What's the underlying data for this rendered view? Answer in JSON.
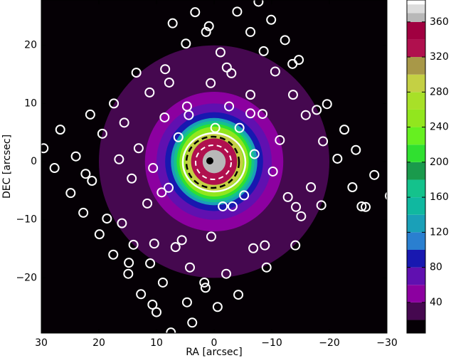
{
  "chart_data": {
    "type": "contour-scatter",
    "x_label": "RA [arcsec]",
    "y_label": "DEC [arcsec]",
    "xlim": [
      30,
      -30
    ],
    "ylim": [
      -29.5,
      27.8
    ],
    "xticks": [
      30,
      20,
      10,
      0,
      {
        "value": -10,
        "label": "−10"
      },
      {
        "value": -20,
        "label": "−20"
      },
      {
        "value": -30,
        "label": "−30"
      }
    ],
    "yticks": [
      {
        "value": -20,
        "label": "−20"
      },
      {
        "value": -10,
        "label": "−10"
      },
      0,
      10,
      20
    ],
    "colorbar": {
      "levels": [
        5,
        20,
        40,
        60,
        80,
        100,
        120,
        140,
        160,
        180,
        200,
        220,
        240,
        260,
        280,
        300,
        320,
        340,
        360,
        370,
        380,
        385
      ],
      "colors": [
        "#050005",
        "#45084f",
        "#8c00a0",
        "#6010b0",
        "#1818b0",
        "#2a7fd0",
        "#1aa0b8",
        "#10b8a0",
        "#14c28c",
        "#1a9a4c",
        "#30e030",
        "#66f020",
        "#92e61e",
        "#a8e028",
        "#c4d044",
        "#a89848",
        "#b0104e",
        "#a00040",
        "#b8b8b8",
        "#dcdcdc",
        "#ffffff"
      ],
      "ticks": [
        40,
        80,
        120,
        160,
        200,
        240,
        280,
        320,
        360
      ]
    },
    "contours": [
      {
        "level": 20,
        "radius": 20
      },
      {
        "level": 40,
        "radius": 12
      },
      {
        "level": 60,
        "radius": 10
      },
      {
        "level": 80,
        "radius": 8.5
      },
      {
        "level": 120,
        "radius": 7.5
      },
      {
        "level": 160,
        "radius": 7
      },
      {
        "level": 200,
        "radius": 6.5
      },
      {
        "level": 240,
        "radius": 6
      },
      {
        "level": 280,
        "radius": 5
      },
      {
        "level": 320,
        "radius": 4
      },
      {
        "level": 360,
        "radius": 2
      }
    ],
    "points": {
      "x": [
        3.3,
        -4.0,
        -7.7,
        0.9,
        7.2,
        1.4,
        -9.9,
        -6.3,
        -12.3,
        4.9,
        -1.1,
        -8.6,
        -14.7,
        -13.6,
        13.5,
        8.5,
        -2.2,
        7.8,
        0.6,
        -3.0,
        -10.6,
        11.2,
        -6.3,
        -13.7,
        17.4,
        4.7,
        -2.6,
        8.6,
        4.4,
        -6.3,
        -8.4,
        21.5,
        15.6,
        -15.9,
        -17.8,
        -19.6,
        26.7,
        -22.6,
        19.4,
        6.2,
        -0.2,
        -4.4,
        -11.4,
        -18.9,
        29.6,
        13.1,
        16.5,
        24.0,
        -7.0,
        -24.6,
        -21.4,
        27.7,
        10.6,
        -10.2,
        22.3,
        21.2,
        14.3,
        24.9,
        9.1,
        7.9,
        -5.2,
        -12.8,
        -16.8,
        -27.8,
        -24.0,
        11.6,
        -1.5,
        -3.2,
        -14.2,
        -18.6,
        -25.6,
        -26.3,
        22.7,
        18.6,
        16.0,
        -15.1,
        19.9,
        14.0,
        10.4,
        5.6,
        6.7,
        0.5,
        -6.8,
        -8.8,
        -14.1,
        14.8,
        17.5,
        11.1,
        4.2,
        -2.1,
        14.9,
        -9.1,
        8.9,
        1.7,
        1.5,
        -4.2,
        12.7,
        10.7,
        4.7,
        -0.6,
        10.0,
        3.8,
        7.5,
        -30.5
      ],
      "y": [
        25.7,
        25.8,
        27.5,
        23.3,
        23.8,
        22.3,
        24.4,
        22.3,
        20.9,
        20.3,
        18.8,
        19.0,
        17.5,
        16.8,
        15.3,
        15.9,
        16.2,
        13.6,
        13.5,
        15.2,
        15.5,
        11.9,
        11.5,
        11.5,
        10.0,
        9.5,
        9.5,
        7.6,
        8.0,
        8.3,
        8.2,
        8.1,
        6.7,
        8.0,
        8.9,
        9.9,
        5.5,
        5.5,
        4.8,
        4.2,
        5.8,
        5.8,
        3.7,
        3.5,
        2.3,
        2.3,
        0.4,
        0.9,
        1.3,
        2.0,
        0.5,
        -1.1,
        -1.1,
        -1.7,
        -2.1,
        -3.3,
        -2.9,
        -5.4,
        -5.3,
        -4.5,
        -5.8,
        -6.1,
        -4.4,
        -2.3,
        -4.4,
        -7.2,
        -7.7,
        -7.7,
        -7.8,
        -7.5,
        -7.7,
        -7.8,
        -8.8,
        -9.8,
        -10.6,
        -9.4,
        -12.5,
        -14.3,
        -14.1,
        -13.5,
        -14.7,
        -12.9,
        -14.9,
        -14.4,
        -14.4,
        -17.4,
        -16.0,
        -17.5,
        -18.2,
        -19.3,
        -19.3,
        -18.2,
        -20.8,
        -20.8,
        -21.7,
        -22.9,
        -22.8,
        -24.6,
        -24.2,
        -25.0,
        -25.9,
        -27.7,
        -29.4,
        -5.9
      ]
    }
  }
}
